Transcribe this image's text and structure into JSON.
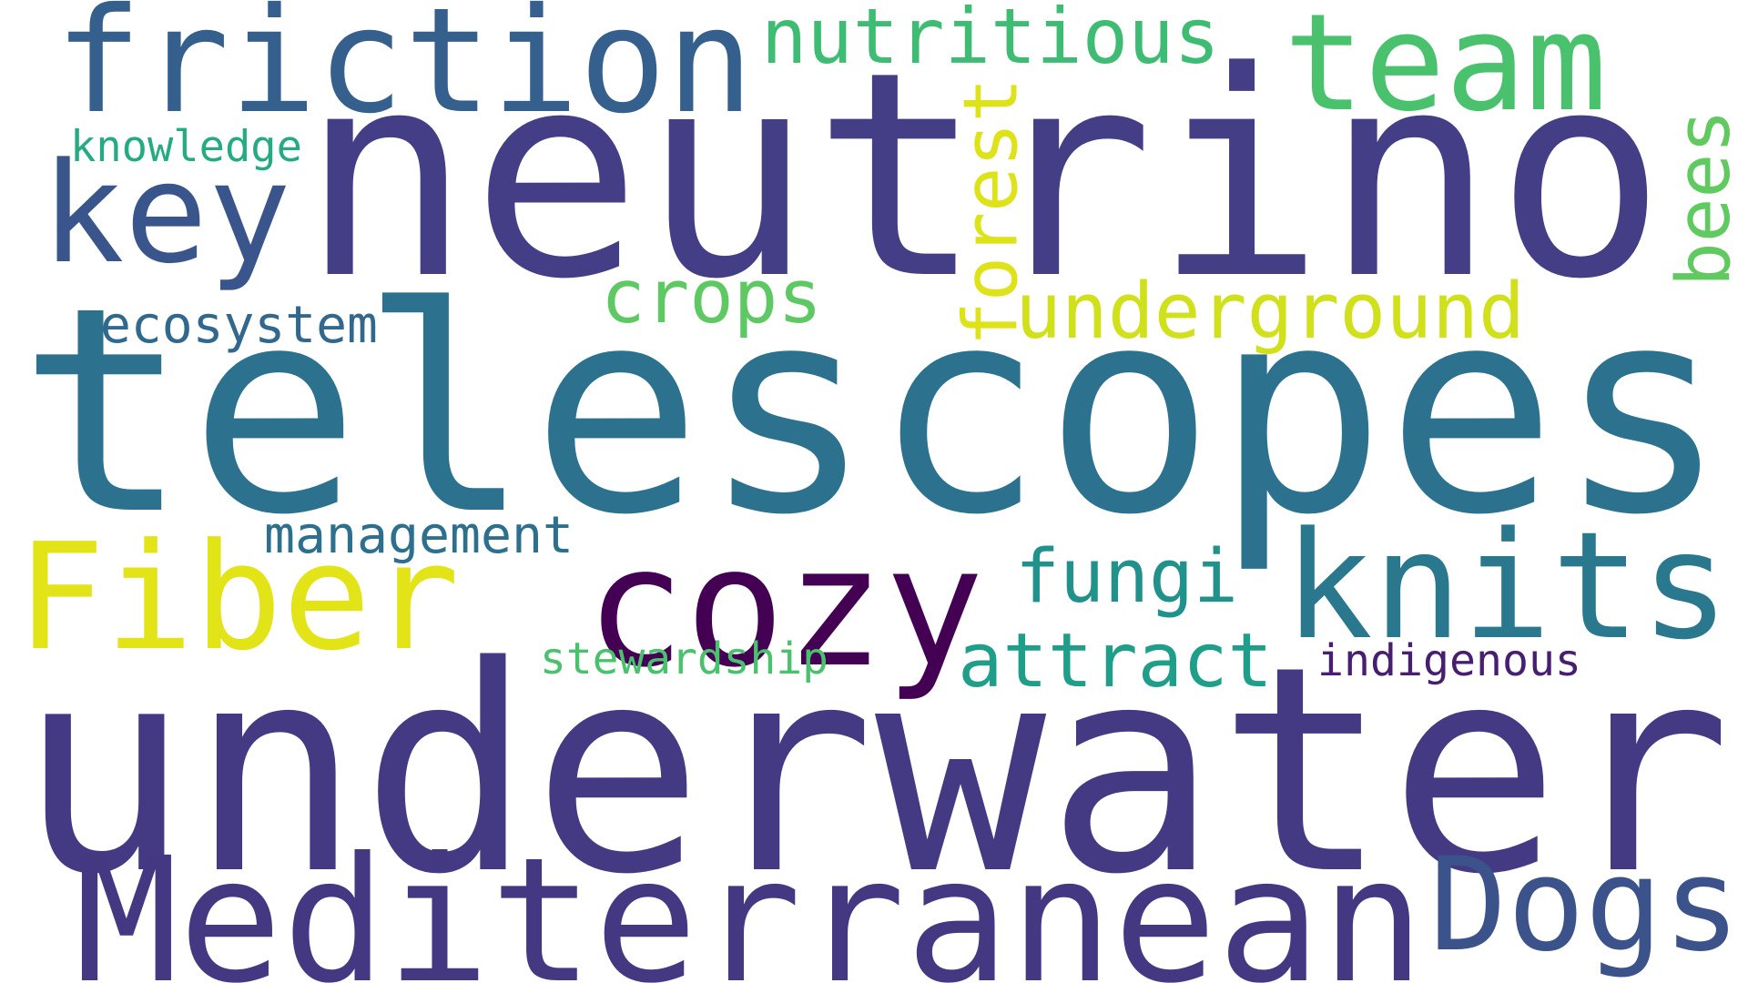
{
  "words": [
    {
      "id": "underwater",
      "text": "underwater",
      "color": "#443983"
    },
    {
      "id": "telescopes",
      "text": "telescopes",
      "color": "#2c728e"
    },
    {
      "id": "neutrino",
      "text": "neutrino",
      "color": "#433e85"
    },
    {
      "id": "mediterranean",
      "text": "Mediterranean",
      "color": "#453882"
    },
    {
      "id": "friction",
      "text": "friction",
      "color": "#355f8d"
    },
    {
      "id": "team",
      "text": "team",
      "color": "#4ac16d"
    },
    {
      "id": "fiber",
      "text": "Fiber",
      "color": "#e2e418"
    },
    {
      "id": "cozy",
      "text": "cozy",
      "color": "#440154"
    },
    {
      "id": "knits",
      "text": "knits",
      "color": "#2a788e"
    },
    {
      "id": "dogs",
      "text": "Dogs",
      "color": "#3b528b"
    },
    {
      "id": "key",
      "text": "key",
      "color": "#39558c"
    },
    {
      "id": "nutritious",
      "text": "nutritious",
      "color": "#3fbc73"
    },
    {
      "id": "forest",
      "text": "forest",
      "color": "#dde318"
    },
    {
      "id": "underground",
      "text": "underground",
      "color": "#d0e11c"
    },
    {
      "id": "crops",
      "text": "crops",
      "color": "#5ec962"
    },
    {
      "id": "bees",
      "text": "bees",
      "color": "#60ca60"
    },
    {
      "id": "fungi",
      "text": "fungi",
      "color": "#21918c"
    },
    {
      "id": "attract",
      "text": "attract",
      "color": "#1f9e89"
    },
    {
      "id": "management",
      "text": "management",
      "color": "#2d708e"
    },
    {
      "id": "ecosystem",
      "text": "ecosystem",
      "color": "#31688e"
    },
    {
      "id": "knowledge",
      "text": "knowledge",
      "color": "#25ab82"
    },
    {
      "id": "stewardship",
      "text": "stewardship",
      "color": "#4ac16d"
    },
    {
      "id": "indigenous",
      "text": "indigenous",
      "color": "#481f70"
    }
  ]
}
